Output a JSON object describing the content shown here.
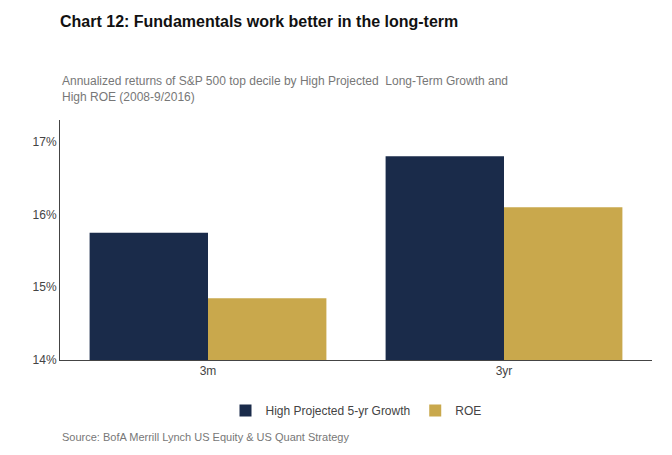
{
  "chart_data": {
    "type": "bar",
    "title": "Chart 12: Fundamentals work better in the long-term",
    "subtitle": "Annualized returns of S&P 500 top decile by High Projected  Long-Term Growth and\nHigh ROE (2008-9/2016)",
    "source": "Source: BofA Merrill Lynch US Equity & US Quant Strategy",
    "categories": [
      "3m",
      "3yr"
    ],
    "series": [
      {
        "name": "High Projected 5-yr Growth",
        "values": [
          15.75,
          16.8
        ],
        "color": "#1a2b4a"
      },
      {
        "name": "ROE",
        "values": [
          14.85,
          16.1
        ],
        "color": "#c9a84c"
      }
    ],
    "ylim": [
      14.0,
      17.3
    ],
    "yticks": [
      {
        "value": 14.0,
        "label": "14%"
      },
      {
        "value": 15.0,
        "label": "15%"
      },
      {
        "value": 16.0,
        "label": "16%"
      },
      {
        "value": 17.0,
        "label": "17%"
      }
    ],
    "grid": false,
    "legend": "bottom"
  }
}
